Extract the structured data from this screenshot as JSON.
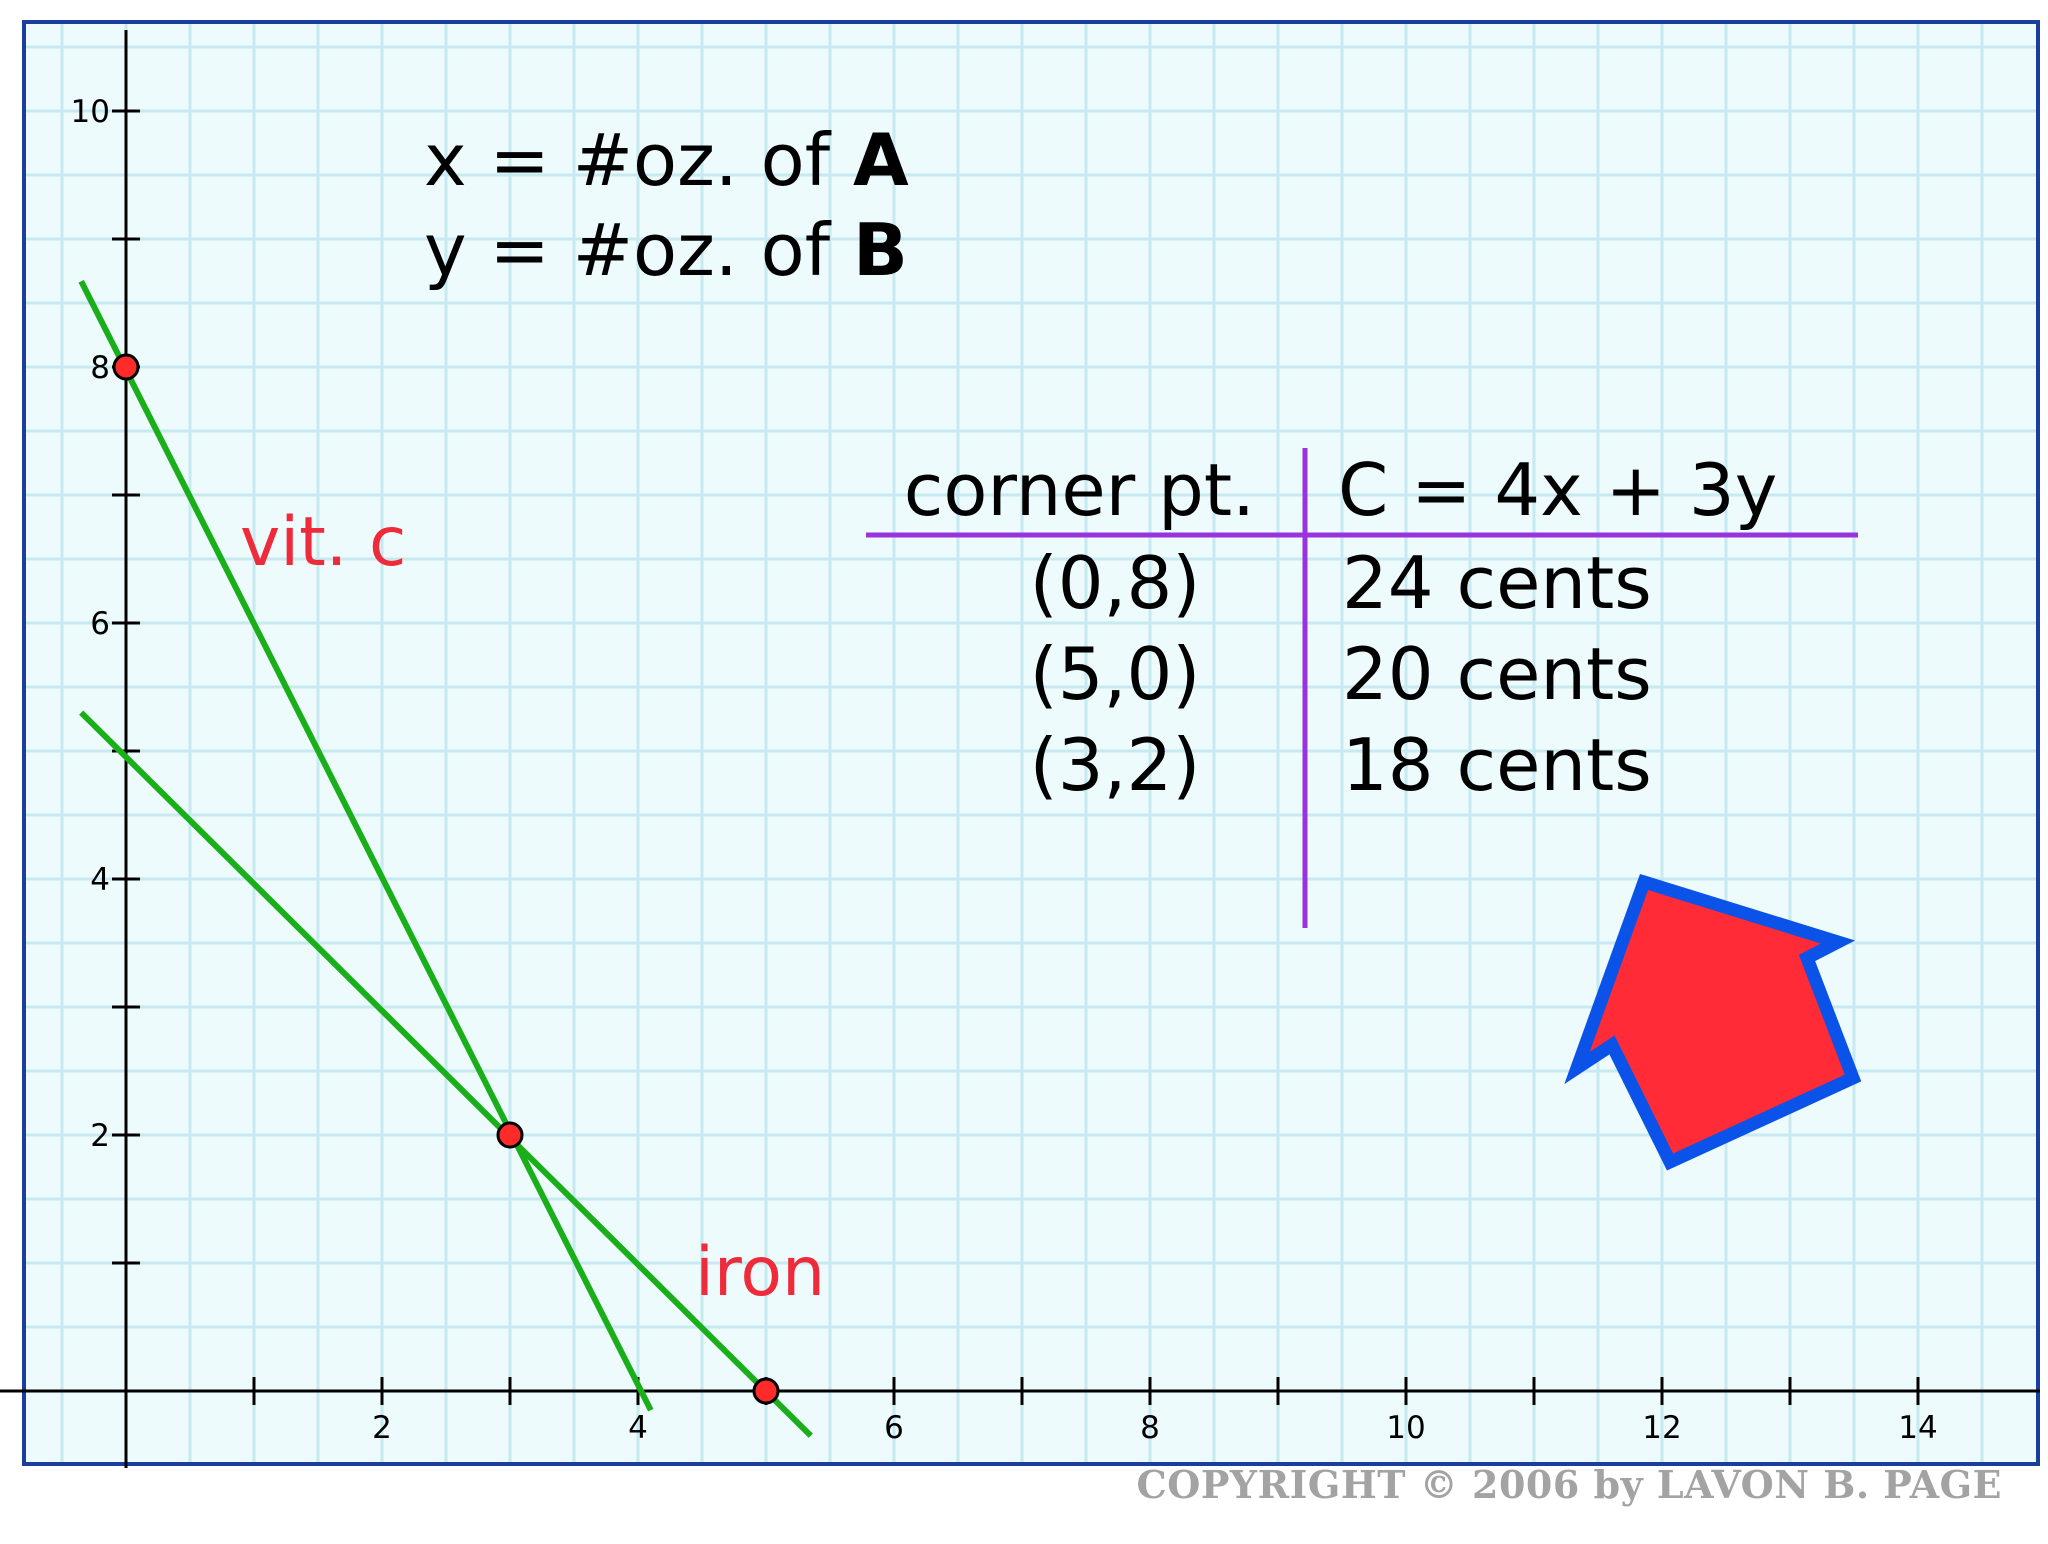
{
  "chart_data": {
    "type": "line",
    "title": "",
    "xlabel": "",
    "ylabel": "",
    "xlim": [
      -0.8,
      14.8
    ],
    "ylim": [
      -0.3,
      10.6
    ],
    "grid": true,
    "x_tick_labels": [
      "2",
      "4",
      "6",
      "8",
      "10",
      "12",
      "14"
    ],
    "y_tick_labels": [
      "2",
      "4",
      "6",
      "8",
      "10"
    ],
    "definitions": {
      "x_line": [
        "x = #oz. of ",
        "A"
      ],
      "y_line": [
        "y = #oz. of ",
        "B"
      ]
    },
    "series": [
      {
        "name": "vit. c",
        "x": [
          -0.35,
          4.1
        ],
        "y": [
          8.67,
          -0.15
        ],
        "color": "#1aaf1a"
      },
      {
        "name": "iron",
        "x": [
          -0.35,
          5.35
        ],
        "y": [
          5.3,
          -0.35
        ],
        "color": "#1aaf1a"
      }
    ],
    "corner_points": [
      {
        "x": 0,
        "y": 8
      },
      {
        "x": 3,
        "y": 2
      },
      {
        "x": 5,
        "y": 0
      }
    ],
    "table": {
      "headers": [
        "corner pt.",
        "C = 4x + 3y"
      ],
      "rows": [
        [
          "(0,8)",
          "24 cents"
        ],
        [
          "(5,0)",
          "20 cents"
        ],
        [
          "(3,2)",
          "18 cents"
        ]
      ]
    },
    "colors": {
      "grid": "#c7eaf0",
      "frame": "#1a3e9e",
      "line": "#1aaf1a",
      "point": "#ff2b2b",
      "label": "#ef2a3a",
      "divider": "#9933dd",
      "arrow_fill": "#ff2b36",
      "arrow_stroke": "#0b52e8"
    }
  },
  "copyright": "COPYRIGHT © 2006 by LAVON B. PAGE"
}
